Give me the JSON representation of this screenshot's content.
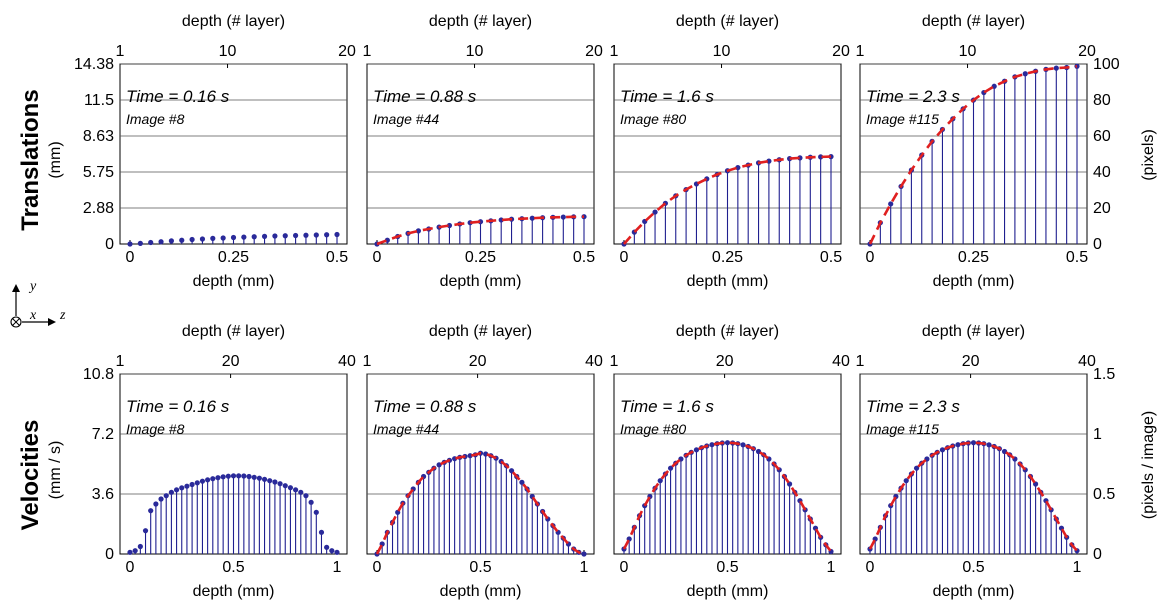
{
  "row_labels": [
    "Translations",
    "Velocities"
  ],
  "translations": {
    "left_unit": "(mm)",
    "right_unit": "(pixels)",
    "left_ticks": [
      "0",
      "2.88",
      "5.75",
      "8.63",
      "11.5",
      "14.38"
    ],
    "right_ticks": [
      "0",
      "20",
      "40",
      "60",
      "80",
      "100"
    ],
    "bottom_ticks": [
      "0",
      "0.25",
      "0.5"
    ],
    "top_ticks": [
      "1",
      "10",
      "20"
    ]
  },
  "velocities": {
    "left_unit": "(mm / s)",
    "right_unit": "(pixels / image)",
    "left_ticks": [
      "0",
      "3.6",
      "7.2",
      "10.8"
    ],
    "right_ticks": [
      "0",
      "0.5",
      "1",
      "1.5"
    ],
    "bottom_ticks": [
      "0",
      "0.5",
      "1"
    ],
    "top_ticks": [
      "1",
      "20",
      "40"
    ]
  },
  "xlabel_bottom": "depth (mm)",
  "xlabel_top": "depth (# layer)",
  "axes_icon": {
    "y": "y",
    "x": "x",
    "z": "z"
  },
  "colors": {
    "stem": "#1f1f8f",
    "marker": "#2a2a9a",
    "fit": "#e02020"
  },
  "chart_data": [
    {
      "type": "stem",
      "title": "",
      "ylabel": "(mm)",
      "y2label": "(pixels)",
      "xlabel": "depth (mm)",
      "x2label": "depth (# layer)",
      "xlim": [
        0,
        0.5
      ],
      "ylim": [
        0,
        14.38
      ],
      "time_label": "Time = 0.16 s",
      "image_label": "Image #8",
      "fit": false,
      "series": [
        {
          "x": [
            0,
            0.025,
            0.05,
            0.075,
            0.1,
            0.125,
            0.15,
            0.175,
            0.2,
            0.225,
            0.25,
            0.275,
            0.3,
            0.325,
            0.35,
            0.375,
            0.4,
            0.425,
            0.45,
            0.475,
            0.5
          ],
          "values": [
            0,
            0.05,
            0.12,
            0.18,
            0.25,
            0.3,
            0.36,
            0.4,
            0.45,
            0.48,
            0.52,
            0.55,
            0.58,
            0.61,
            0.64,
            0.66,
            0.68,
            0.7,
            0.72,
            0.74,
            0.76
          ]
        }
      ]
    },
    {
      "type": "stem",
      "title": "",
      "ylabel": "(mm)",
      "y2label": "(pixels)",
      "xlabel": "depth (mm)",
      "x2label": "depth (# layer)",
      "xlim": [
        0,
        0.5
      ],
      "ylim": [
        0,
        14.38
      ],
      "time_label": "Time = 0.88 s",
      "image_label": "Image #44",
      "fit": true,
      "series": [
        {
          "x": [
            0,
            0.025,
            0.05,
            0.075,
            0.1,
            0.125,
            0.15,
            0.175,
            0.2,
            0.225,
            0.25,
            0.275,
            0.3,
            0.325,
            0.35,
            0.375,
            0.4,
            0.425,
            0.45,
            0.475,
            0.5
          ],
          "values": [
            0,
            0.3,
            0.6,
            0.85,
            1.05,
            1.2,
            1.35,
            1.48,
            1.6,
            1.7,
            1.78,
            1.85,
            1.92,
            1.98,
            2.02,
            2.06,
            2.1,
            2.13,
            2.15,
            2.17,
            2.18
          ]
        }
      ]
    },
    {
      "type": "stem",
      "title": "",
      "ylabel": "(mm)",
      "y2label": "(pixels)",
      "xlabel": "depth (mm)",
      "x2label": "depth (# layer)",
      "xlim": [
        0,
        0.5
      ],
      "ylim": [
        0,
        14.38
      ],
      "time_label": "Time = 1.6 s",
      "image_label": "Image #80",
      "fit": true,
      "series": [
        {
          "x": [
            0,
            0.025,
            0.05,
            0.075,
            0.1,
            0.125,
            0.15,
            0.175,
            0.2,
            0.225,
            0.25,
            0.275,
            0.3,
            0.325,
            0.35,
            0.375,
            0.4,
            0.425,
            0.45,
            0.475,
            0.5
          ],
          "values": [
            0,
            0.95,
            1.8,
            2.55,
            3.25,
            3.85,
            4.35,
            4.8,
            5.2,
            5.55,
            5.85,
            6.1,
            6.3,
            6.48,
            6.62,
            6.73,
            6.82,
            6.88,
            6.93,
            6.96,
            6.98
          ]
        }
      ]
    },
    {
      "type": "stem",
      "title": "",
      "ylabel": "(mm)",
      "y2label": "(pixels)",
      "xlabel": "depth (mm)",
      "x2label": "depth (# layer)",
      "xlim": [
        0,
        0.5
      ],
      "ylim": [
        0,
        14.38
      ],
      "time_label": "Time = 2.3 s",
      "image_label": "Image #115",
      "fit": true,
      "series": [
        {
          "x": [
            0,
            0.025,
            0.05,
            0.075,
            0.1,
            0.125,
            0.15,
            0.175,
            0.2,
            0.225,
            0.25,
            0.275,
            0.3,
            0.325,
            0.35,
            0.375,
            0.4,
            0.425,
            0.45,
            0.475,
            0.5
          ],
          "values": [
            0,
            1.7,
            3.2,
            4.6,
            5.9,
            7.1,
            8.2,
            9.15,
            10.0,
            10.8,
            11.5,
            12.1,
            12.6,
            13.0,
            13.35,
            13.6,
            13.8,
            13.95,
            14.05,
            14.1,
            14.2
          ]
        }
      ]
    },
    {
      "type": "stem",
      "title": "",
      "ylabel": "(mm / s)",
      "y2label": "(pixels / image)",
      "xlabel": "depth (mm)",
      "x2label": "depth (# layer)",
      "xlim": [
        0,
        1
      ],
      "ylim": [
        0,
        10.8
      ],
      "time_label": "Time = 0.16 s",
      "image_label": "Image #8",
      "fit": false,
      "series": [
        {
          "x": [
            0,
            0.025,
            0.05,
            0.075,
            0.1,
            0.125,
            0.15,
            0.175,
            0.2,
            0.225,
            0.25,
            0.275,
            0.3,
            0.325,
            0.35,
            0.375,
            0.4,
            0.425,
            0.45,
            0.475,
            0.5,
            0.525,
            0.55,
            0.575,
            0.6,
            0.625,
            0.65,
            0.675,
            0.7,
            0.725,
            0.75,
            0.775,
            0.8,
            0.825,
            0.85,
            0.875,
            0.9,
            0.925,
            0.95,
            0.975,
            1.0
          ],
          "values": [
            0.1,
            0.2,
            0.45,
            1.4,
            2.6,
            3.0,
            3.3,
            3.5,
            3.7,
            3.85,
            3.97,
            4.07,
            4.17,
            4.27,
            4.37,
            4.45,
            4.52,
            4.58,
            4.63,
            4.67,
            4.69,
            4.69,
            4.68,
            4.65,
            4.6,
            4.55,
            4.48,
            4.4,
            4.32,
            4.22,
            4.1,
            3.98,
            3.85,
            3.7,
            3.5,
            3.1,
            2.5,
            1.3,
            0.4,
            0.2,
            0.1
          ]
        }
      ]
    },
    {
      "type": "stem",
      "title": "",
      "ylabel": "(mm / s)",
      "y2label": "(pixels / image)",
      "xlabel": "depth (mm)",
      "x2label": "depth (# layer)",
      "xlim": [
        0,
        1
      ],
      "ylim": [
        0,
        10.8
      ],
      "time_label": "Time = 0.88 s",
      "image_label": "Image #44",
      "fit": true,
      "series": [
        {
          "x": [
            0,
            0.025,
            0.05,
            0.075,
            0.1,
            0.125,
            0.15,
            0.175,
            0.2,
            0.225,
            0.25,
            0.275,
            0.3,
            0.325,
            0.35,
            0.375,
            0.4,
            0.425,
            0.45,
            0.475,
            0.5,
            0.525,
            0.55,
            0.575,
            0.6,
            0.625,
            0.65,
            0.675,
            0.7,
            0.725,
            0.75,
            0.775,
            0.8,
            0.825,
            0.85,
            0.875,
            0.9,
            0.925,
            0.95,
            0.975,
            1.0
          ],
          "values": [
            0.0,
            0.6,
            1.3,
            1.9,
            2.5,
            3.05,
            3.5,
            3.9,
            4.3,
            4.65,
            4.9,
            5.15,
            5.35,
            5.5,
            5.62,
            5.72,
            5.8,
            5.85,
            5.9,
            5.95,
            6.05,
            6.0,
            5.9,
            5.75,
            5.55,
            5.3,
            5.0,
            4.65,
            4.3,
            3.9,
            3.45,
            3.0,
            2.55,
            2.1,
            1.7,
            1.3,
            0.95,
            0.6,
            0.3,
            0.1,
            0.0
          ]
        }
      ]
    },
    {
      "type": "stem",
      "title": "",
      "ylabel": "(mm / s)",
      "y2label": "(pixels / image)",
      "xlabel": "depth (mm)",
      "x2label": "depth (# layer)",
      "xlim": [
        0,
        1
      ],
      "ylim": [
        0,
        10.8
      ],
      "time_label": "Time = 1.6 s",
      "image_label": "Image #80",
      "fit": true,
      "series": [
        {
          "x": [
            0,
            0.025,
            0.05,
            0.075,
            0.1,
            0.125,
            0.15,
            0.175,
            0.2,
            0.225,
            0.25,
            0.275,
            0.3,
            0.325,
            0.35,
            0.375,
            0.4,
            0.425,
            0.45,
            0.475,
            0.5,
            0.525,
            0.55,
            0.575,
            0.6,
            0.625,
            0.65,
            0.675,
            0.7,
            0.725,
            0.75,
            0.775,
            0.8,
            0.825,
            0.85,
            0.875,
            0.9,
            0.925,
            0.95,
            0.975,
            1.0
          ],
          "values": [
            0.3,
            0.9,
            1.6,
            2.3,
            2.9,
            3.45,
            3.95,
            4.4,
            4.8,
            5.15,
            5.45,
            5.7,
            5.92,
            6.1,
            6.25,
            6.38,
            6.48,
            6.56,
            6.62,
            6.66,
            6.68,
            6.66,
            6.62,
            6.55,
            6.45,
            6.32,
            6.15,
            5.95,
            5.7,
            5.4,
            5.05,
            4.65,
            4.2,
            3.7,
            3.2,
            2.65,
            2.1,
            1.55,
            1.0,
            0.55,
            0.15
          ]
        }
      ]
    },
    {
      "type": "stem",
      "title": "",
      "ylabel": "(mm / s)",
      "y2label": "(pixels / image)",
      "xlabel": "depth (mm)",
      "x2label": "depth (# layer)",
      "xlim": [
        0,
        1
      ],
      "ylim": [
        0,
        10.8
      ],
      "time_label": "Time = 2.3 s",
      "image_label": "Image #115",
      "fit": true,
      "series": [
        {
          "x": [
            0,
            0.025,
            0.05,
            0.075,
            0.1,
            0.125,
            0.15,
            0.175,
            0.2,
            0.225,
            0.25,
            0.275,
            0.3,
            0.325,
            0.35,
            0.375,
            0.4,
            0.425,
            0.45,
            0.475,
            0.5,
            0.525,
            0.55,
            0.575,
            0.6,
            0.625,
            0.65,
            0.675,
            0.7,
            0.725,
            0.75,
            0.775,
            0.8,
            0.825,
            0.85,
            0.875,
            0.9,
            0.925,
            0.95,
            0.975,
            1.0
          ],
          "values": [
            0.3,
            0.9,
            1.6,
            2.3,
            2.9,
            3.45,
            3.95,
            4.4,
            4.8,
            5.15,
            5.45,
            5.7,
            5.92,
            6.1,
            6.25,
            6.38,
            6.48,
            6.56,
            6.62,
            6.66,
            6.68,
            6.66,
            6.62,
            6.55,
            6.45,
            6.32,
            6.15,
            5.95,
            5.7,
            5.4,
            5.05,
            4.65,
            4.2,
            3.7,
            3.2,
            2.65,
            2.1,
            1.55,
            1.0,
            0.55,
            0.2
          ]
        }
      ]
    }
  ]
}
